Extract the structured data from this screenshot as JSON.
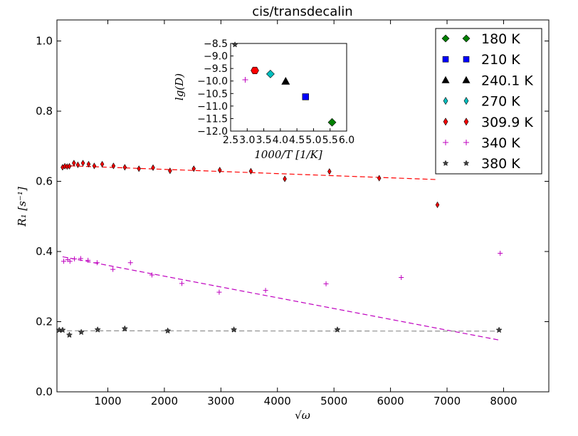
{
  "chart_data": [
    {
      "type": "scatter",
      "title": "cis/transdecalin",
      "xlabel": "√ω",
      "ylabel": "R₁ [s⁻¹]",
      "xlim": [
        100,
        8800
      ],
      "ylim": [
        0.0,
        1.06
      ],
      "xticks": [
        "1000",
        "2000",
        "3000",
        "4000",
        "5000",
        "6000",
        "7000",
        "8000"
      ],
      "xtick_values": [
        1000,
        2000,
        3000,
        4000,
        5000,
        6000,
        7000,
        8000
      ],
      "yticks": [
        "0.0",
        "0.2",
        "0.4",
        "0.6",
        "0.8",
        "1.0"
      ],
      "ytick_values": [
        0.0,
        0.2,
        0.4,
        0.6,
        0.8,
        1.0
      ],
      "legend_position": "top-right",
      "legend": [
        {
          "label": "180 K",
          "color": "#008000",
          "marker": "diamond"
        },
        {
          "label": "210 K",
          "color": "#0000ff",
          "marker": "square"
        },
        {
          "label": "240.1 K",
          "color": "#000000",
          "marker": "triangle"
        },
        {
          "label": "270 K",
          "color": "#00bfbf",
          "marker": "thin_diamond"
        },
        {
          "label": "309.9 K",
          "color": "#ff0000",
          "marker": "thin_diamond"
        },
        {
          "label": "340 K",
          "color": "#bf00bf",
          "marker": "plus"
        },
        {
          "label": "380 K",
          "color": "#404040",
          "marker": "star"
        }
      ],
      "series": [
        {
          "label": "309.9 K",
          "color": "#ff0000",
          "marker": "thin_diamond",
          "x": [
            200,
            240,
            280,
            320,
            400,
            470,
            560,
            660,
            760,
            900,
            1100,
            1300,
            1550,
            1800,
            2100,
            2520,
            2980,
            3530,
            4130,
            4920,
            5800,
            6830
          ],
          "y": [
            0.64,
            0.643,
            0.642,
            0.643,
            0.652,
            0.647,
            0.652,
            0.649,
            0.644,
            0.649,
            0.644,
            0.64,
            0.636,
            0.639,
            0.63,
            0.636,
            0.632,
            0.629,
            0.607,
            0.628,
            0.609,
            0.533
          ],
          "fit": {
            "x": [
              200,
              6830
            ],
            "y": [
              0.645,
              0.605
            ],
            "color": "#ff0000"
          }
        },
        {
          "label": "340 K",
          "color": "#bf00bf",
          "marker": "plus",
          "x": [
            220,
            290,
            330,
            410,
            520,
            650,
            810,
            1090,
            1400,
            1780,
            2310,
            2970,
            3790,
            4860,
            6190,
            7940
          ],
          "y": [
            0.372,
            0.377,
            0.372,
            0.379,
            0.38,
            0.375,
            0.368,
            0.349,
            0.368,
            0.333,
            0.309,
            0.284,
            0.289,
            0.308,
            0.326,
            0.395
          ],
          "fit": {
            "x": [
              200,
              7940
            ],
            "y": [
              0.385,
              0.147
            ],
            "color": "#bf00bf"
          }
        },
        {
          "label": "380 K",
          "color": "#404040",
          "marker": "star",
          "x": [
            140,
            200,
            320,
            530,
            820,
            1300,
            2060,
            3230,
            5060,
            7920
          ],
          "y": [
            0.176,
            0.176,
            0.162,
            0.17,
            0.177,
            0.18,
            0.174,
            0.177,
            0.177,
            0.176
          ],
          "fit": {
            "x": [
              140,
              7920
            ],
            "y": [
              0.174,
              0.173
            ],
            "color": "#909090"
          }
        }
      ]
    },
    {
      "type": "scatter",
      "title": "",
      "xlabel": "1000/T [1/K]",
      "ylabel": "lg(D)",
      "xlim": [
        2.5,
        6.0
      ],
      "ylim": [
        -12.0,
        -8.5
      ],
      "xticks": [
        "2.5",
        "3.0",
        "3.5",
        "4.0",
        "4.5",
        "5.0",
        "5.5",
        "6.0"
      ],
      "xtick_values": [
        2.5,
        3.0,
        3.5,
        4.0,
        4.5,
        5.0,
        5.5,
        6.0
      ],
      "yticks": [
        "−8.5",
        "−9.0",
        "−9.5",
        "−10.0",
        "−10.5",
        "−11.0",
        "−11.5",
        "−12.0"
      ],
      "ytick_values": [
        -8.5,
        -9.0,
        -9.5,
        -10.0,
        -10.5,
        -11.0,
        -11.5,
        -12.0
      ],
      "points": [
        {
          "label": "380 K",
          "x": 2.63,
          "y": -8.55,
          "color": "#404040",
          "marker": "star"
        },
        {
          "label": "340 K",
          "x": 2.94,
          "y": -9.95,
          "color": "#bf00bf",
          "marker": "plus"
        },
        {
          "label": "309.9 K",
          "x": 3.23,
          "y": -9.58,
          "color": "#ff0000",
          "marker": "hexagon"
        },
        {
          "label": "270 K",
          "x": 3.7,
          "y": -9.72,
          "color": "#00bfbf",
          "marker": "diamond"
        },
        {
          "label": "240.1 K",
          "x": 4.16,
          "y": -10.01,
          "color": "#000000",
          "marker": "triangle"
        },
        {
          "label": "210 K",
          "x": 4.76,
          "y": -10.63,
          "color": "#0000ff",
          "marker": "square"
        },
        {
          "label": "180 K",
          "x": 5.56,
          "y": -11.65,
          "color": "#008000",
          "marker": "diamond"
        }
      ]
    }
  ]
}
